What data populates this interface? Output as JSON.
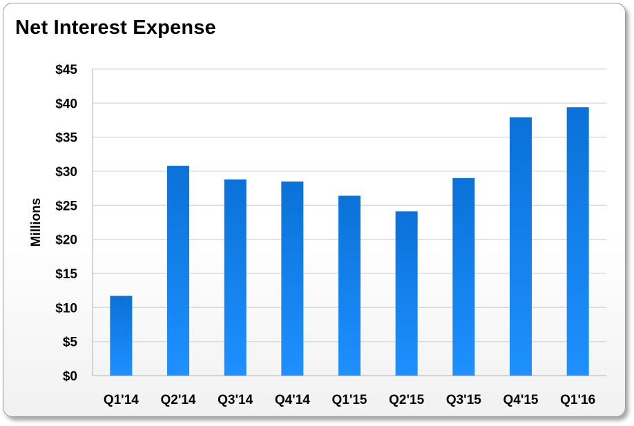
{
  "chart_data": {
    "type": "bar",
    "title": "Net Interest Expense",
    "ylabel": "Millions",
    "xlabel": "",
    "categories": [
      "Q1'14",
      "Q2'14",
      "Q3'14",
      "Q4'14",
      "Q1'15",
      "Q2'15",
      "Q3'15",
      "Q4'15",
      "Q1'16"
    ],
    "values": [
      11.7,
      30.8,
      28.8,
      28.5,
      26.4,
      24.1,
      29.0,
      37.9,
      39.4
    ],
    "ylim": [
      0,
      45
    ],
    "yticks": [
      0,
      5,
      10,
      15,
      20,
      25,
      30,
      35,
      40,
      45
    ],
    "ytick_labels": [
      "$0",
      "$5",
      "$10",
      "$15",
      "$20",
      "$25",
      "$30",
      "$35",
      "$40",
      "$45"
    ],
    "grid": true,
    "legend": "none",
    "colors": {
      "bar_top": "#0a72d8",
      "bar_bottom": "#1e90ff",
      "grid": "#d9d9d9",
      "axis": "#bfbfbf"
    }
  }
}
